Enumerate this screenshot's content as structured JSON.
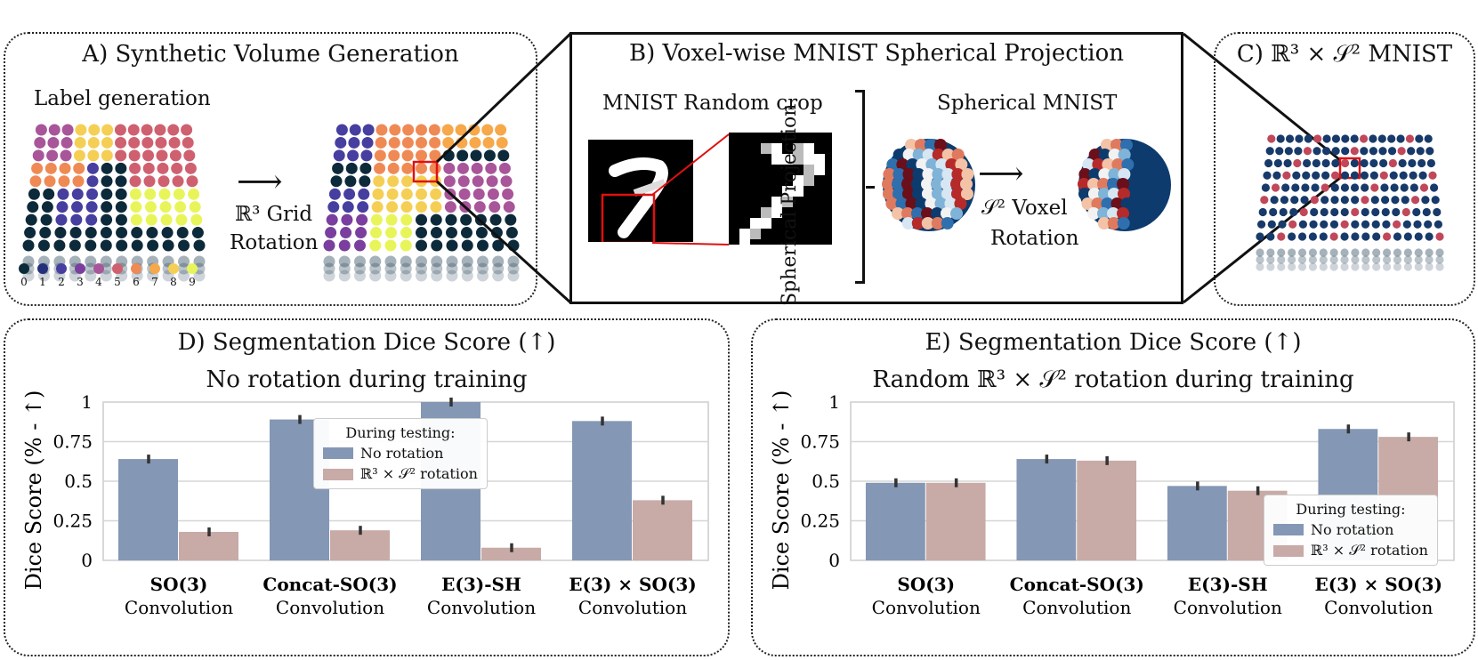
{
  "panel_a": {
    "title": "A) Synthetic Volume Generation",
    "subtitle": "Label generation",
    "arrow_text_1": "ℝ³ Grid",
    "arrow_text_2": "Rotation",
    "label_keys": [
      "0",
      "1",
      "2",
      "3",
      "4",
      "5",
      "6",
      "7",
      "8",
      "9"
    ],
    "label_colors": [
      "#0d2a3a",
      "#24307a",
      "#463fa0",
      "#7a3f9e",
      "#a8559a",
      "#cf6070",
      "#ef8a55",
      "#f6a84a",
      "#f5cf55",
      "#e8f55a"
    ]
  },
  "panel_b": {
    "title": "B) Voxel-wise MNIST Spherical Projection",
    "crop_title": "MNIST Random crop",
    "projection_label": "Spherical Projection",
    "sphere_title": "Spherical MNIST",
    "arrow_text_1": "𝒮² Voxel",
    "arrow_text_2": "Rotation"
  },
  "panel_c": {
    "title": "C) ℝ³ × 𝒮² MNIST"
  },
  "colors": {
    "no_rotation": "#8497b4",
    "rotation": "#c8aaa6",
    "grid": "#d6d6d6"
  },
  "chart_data": [
    {
      "type": "bar",
      "panel_title": "D) Segmentation Dice Score (↑)",
      "title": "No rotation during training",
      "ylabel": "Dice Score (% - ↑)",
      "ylim": [
        0,
        1
      ],
      "yticks": [
        "0",
        "0.25",
        "0.5",
        "0.75",
        "1"
      ],
      "categories": [
        [
          "SO(3)",
          "Convolution"
        ],
        [
          "Concat-SO(3)",
          "Convolution"
        ],
        [
          "E(3)-SH",
          "Convolution"
        ],
        [
          "E(3) × SO(3)",
          "Convolution"
        ]
      ],
      "series": [
        {
          "name": "No rotation",
          "values": [
            0.64,
            0.89,
            1.0,
            0.88
          ]
        },
        {
          "name": "ℝ³ × 𝒮² rotation",
          "values": [
            0.18,
            0.19,
            0.08,
            0.38
          ]
        }
      ],
      "legend_title": "During testing:",
      "legend_position": "top-center"
    },
    {
      "type": "bar",
      "panel_title": "E) Segmentation Dice Score (↑)",
      "title": "Random ℝ³ × 𝒮² rotation during training",
      "ylabel": "Dice Score (% - ↑)",
      "ylim": [
        0,
        1
      ],
      "yticks": [
        "0",
        "0.25",
        "0.5",
        "0.75",
        "1"
      ],
      "categories": [
        [
          "SO(3)",
          "Convolution"
        ],
        [
          "Concat-SO(3)",
          "Convolution"
        ],
        [
          "E(3)-SH",
          "Convolution"
        ],
        [
          "E(3) × SO(3)",
          "Convolution"
        ]
      ],
      "series": [
        {
          "name": "No rotation",
          "values": [
            0.49,
            0.64,
            0.47,
            0.83
          ]
        },
        {
          "name": "ℝ³ × 𝒮² rotation",
          "values": [
            0.49,
            0.63,
            0.44,
            0.78
          ]
        }
      ],
      "legend_title": "During testing:",
      "legend_position": "bottom-right"
    }
  ]
}
